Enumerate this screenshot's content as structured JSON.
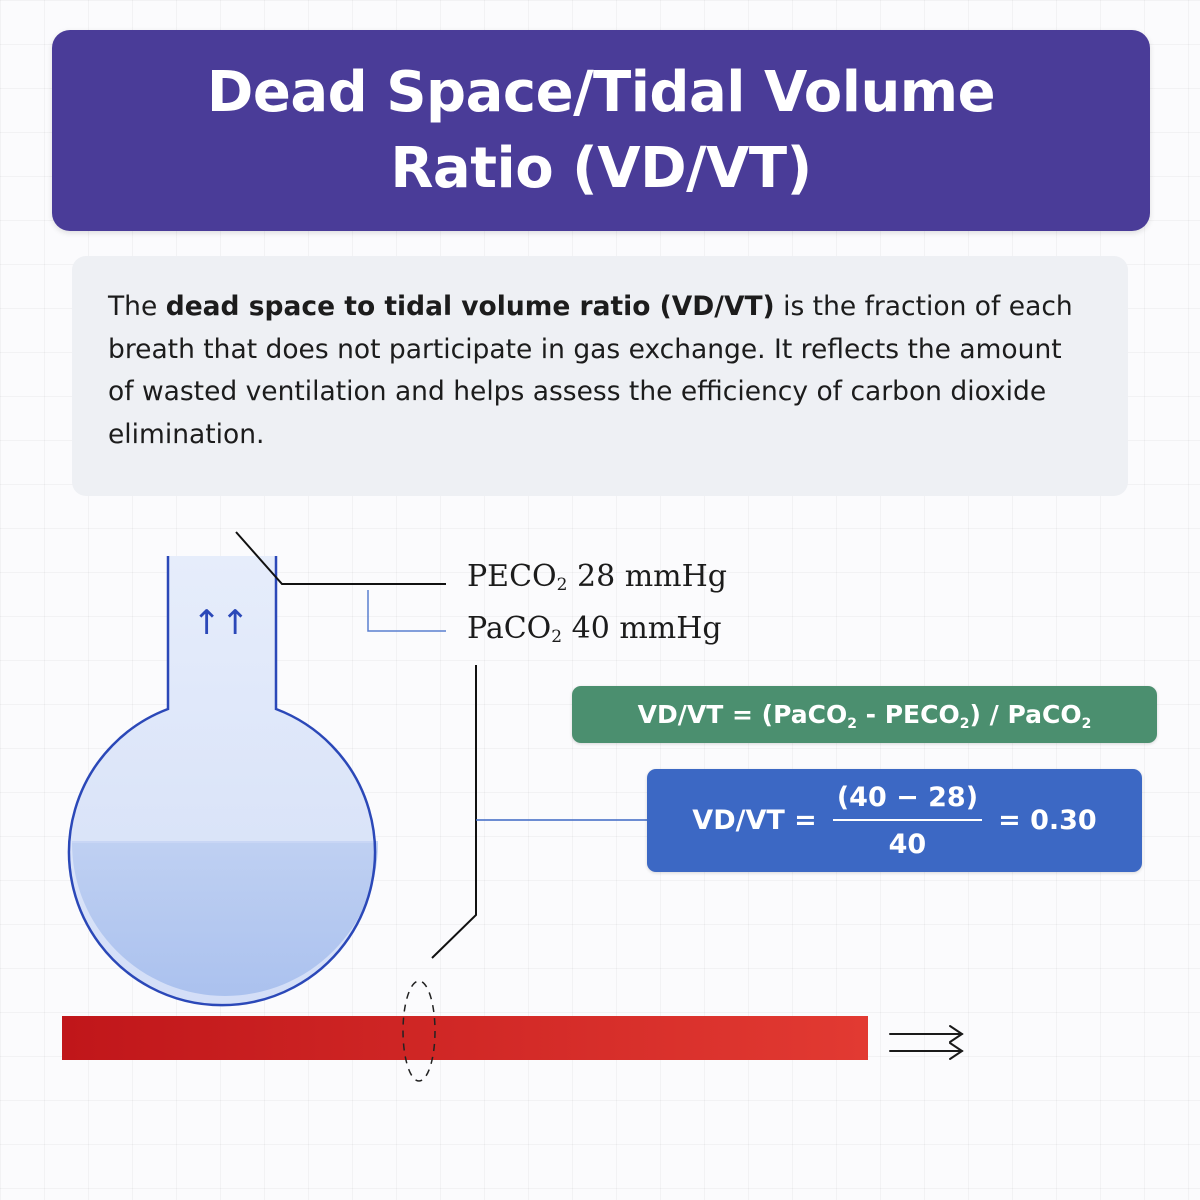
{
  "title": {
    "line1": "Dead Space/Tidal Volume",
    "line2": "Ratio (VD/VT)"
  },
  "description": {
    "lead": "The ",
    "bold": "dead space to tidal volume ratio (VD/VT)",
    "rest": " is the fraction of each breath that does not participate in gas exchange. It reflects the amount of wasted ventilation and helps assess the efficiency of carbon dioxide elimination."
  },
  "labels": {
    "peco2": {
      "prefix": "PECO",
      "sub": "2",
      "value": " 28 mmHg"
    },
    "paco2": {
      "prefix": "PaCO",
      "sub": "2",
      "value": " 40 mmHg"
    }
  },
  "formula": {
    "general": {
      "part1": "VD/VT = (PaCO",
      "sub1": "2",
      "part2": " - PECO",
      "sub2": "2",
      "part3": ") / PaCO",
      "sub3": "2"
    },
    "calc": {
      "lhs": "VD/VT =",
      "numerator": "(40 − 28)",
      "denominator": "40",
      "result": "= 0.30"
    }
  },
  "icons": {
    "up_arrows": "↑↑",
    "right_arrows": "double-right-arrow-icon"
  },
  "colors": {
    "title_bg": "#4a3c98",
    "formula_green": "#4b8f6f",
    "formula_blue": "#3c68c4",
    "blood_vessel": "#d02a2a",
    "flask_outline": "#2b48b8",
    "flask_fill": "#dbe5fa"
  }
}
